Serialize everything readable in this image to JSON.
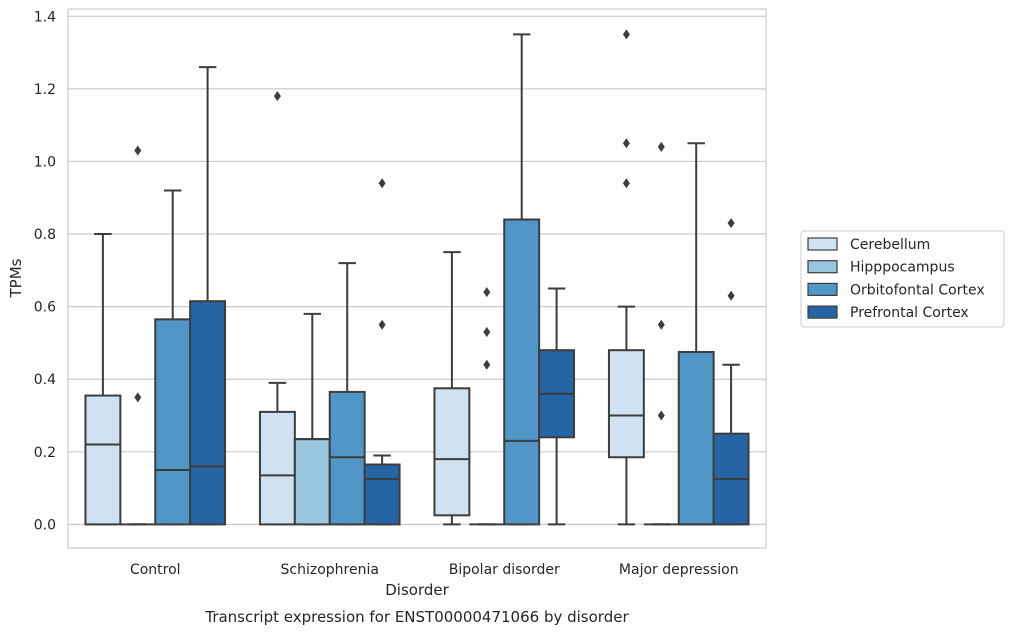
{
  "chart_data": {
    "type": "box",
    "caption": "Transcript expression for ENST00000471066 by disorder",
    "xlabel": "Disorder",
    "ylabel": "TPMs",
    "ylim": [
      -0.065,
      1.42
    ],
    "yticks": [
      0.0,
      0.2,
      0.4,
      0.6,
      0.8,
      1.0,
      1.2,
      1.4
    ],
    "ytick_labels": [
      "0.0",
      "0.2",
      "0.4",
      "0.6",
      "0.8",
      "1.0",
      "1.2",
      "1.4"
    ],
    "grid": "horizontal",
    "legend_position": "right",
    "categories": [
      "Control",
      "Schizophrenia",
      "Bipolar disorder",
      "Major depression"
    ],
    "series": [
      {
        "name": "Cerebellum",
        "color": "#d0e1f1",
        "boxes": [
          {
            "q1": 0.0,
            "median": 0.22,
            "q3": 0.355,
            "whislo": 0.0,
            "whishi": 0.8,
            "fliers": []
          },
          {
            "q1": 0.0,
            "median": 0.135,
            "q3": 0.31,
            "whislo": 0.0,
            "whishi": 0.39,
            "fliers": [
              1.18
            ]
          },
          {
            "q1": 0.025,
            "median": 0.18,
            "q3": 0.375,
            "whislo": 0.0,
            "whishi": 0.75,
            "fliers": []
          },
          {
            "q1": 0.185,
            "median": 0.3,
            "q3": 0.48,
            "whislo": 0.0,
            "whishi": 0.6,
            "fliers": [
              0.94,
              1.05,
              1.35
            ]
          }
        ]
      },
      {
        "name": "Hipppocampus",
        "color": "#9ac7e0",
        "boxes": [
          {
            "q1": 0.0,
            "median": 0.0,
            "q3": 0.0,
            "whislo": 0.0,
            "whishi": 0.0,
            "fliers": [
              0.35,
              1.03
            ]
          },
          {
            "q1": 0.0,
            "median": 0.235,
            "q3": 0.235,
            "whislo": 0.0,
            "whishi": 0.58,
            "fliers": []
          },
          {
            "q1": 0.0,
            "median": 0.0,
            "q3": 0.0,
            "whislo": 0.0,
            "whishi": 0.0,
            "fliers": [
              0.44,
              0.53,
              0.64
            ]
          },
          {
            "q1": 0.0,
            "median": 0.0,
            "q3": 0.0,
            "whislo": 0.0,
            "whishi": 0.0,
            "fliers": [
              0.3,
              0.55,
              1.04
            ]
          }
        ]
      },
      {
        "name": "Orbitofontal Cortex",
        "color": "#5096c6",
        "boxes": [
          {
            "q1": 0.0,
            "median": 0.15,
            "q3": 0.565,
            "whislo": 0.0,
            "whishi": 0.92,
            "fliers": []
          },
          {
            "q1": 0.0,
            "median": 0.185,
            "q3": 0.365,
            "whislo": 0.0,
            "whishi": 0.72,
            "fliers": []
          },
          {
            "q1": 0.0,
            "median": 0.23,
            "q3": 0.84,
            "whislo": 0.0,
            "whishi": 1.35,
            "fliers": []
          },
          {
            "q1": 0.0,
            "median": 0.0,
            "q3": 0.475,
            "whislo": 0.0,
            "whishi": 1.05,
            "fliers": []
          }
        ]
      },
      {
        "name": "Prefrontal Cortex",
        "color": "#2565a6",
        "boxes": [
          {
            "q1": 0.0,
            "median": 0.16,
            "q3": 0.615,
            "whislo": 0.0,
            "whishi": 1.26,
            "fliers": []
          },
          {
            "q1": 0.0,
            "median": 0.125,
            "q3": 0.165,
            "whislo": 0.0,
            "whishi": 0.19,
            "fliers": [
              0.55,
              0.94
            ]
          },
          {
            "q1": 0.24,
            "median": 0.36,
            "q3": 0.48,
            "whislo": 0.0,
            "whishi": 0.65,
            "fliers": []
          },
          {
            "q1": 0.0,
            "median": 0.125,
            "q3": 0.25,
            "whislo": 0.0,
            "whishi": 0.44,
            "fliers": [
              0.63,
              0.83
            ]
          }
        ]
      }
    ]
  }
}
